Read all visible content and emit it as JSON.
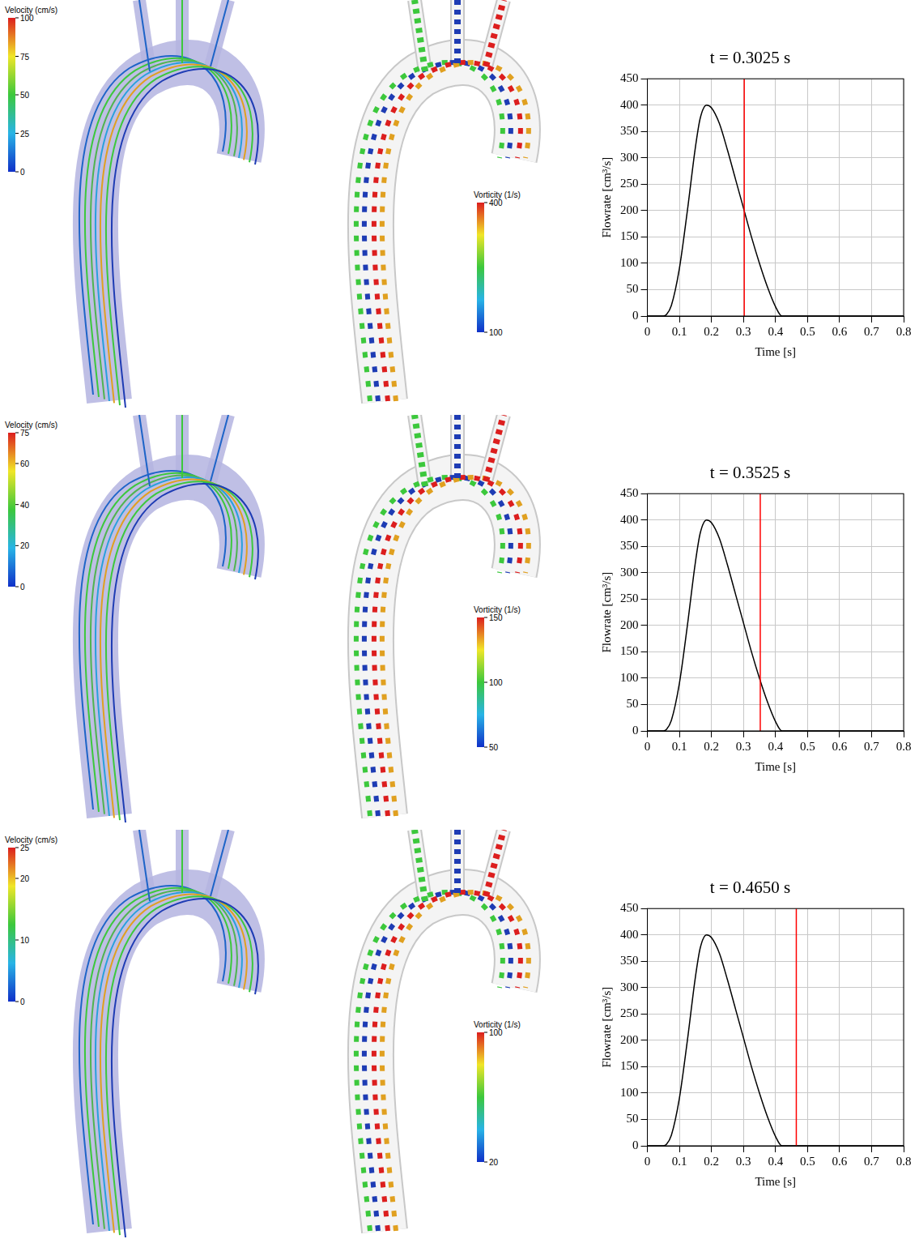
{
  "panels": [
    {
      "velocity_colorbar": {
        "title": "Velocity (cm/s)",
        "range": [
          0,
          100
        ],
        "ticks": [
          0,
          25,
          50,
          75,
          100
        ]
      },
      "vorticity_colorbar": {
        "title": "Vorticity (1/s)",
        "range": [
          100,
          400
        ],
        "ticks": [
          100,
          400
        ]
      }
    },
    {
      "velocity_colorbar": {
        "title": "Velocity (cm/s)",
        "range": [
          0,
          75
        ],
        "ticks": [
          0,
          20,
          40,
          60,
          75
        ]
      },
      "vorticity_colorbar": {
        "title": "Vorticity (1/s)",
        "range": [
          50,
          150
        ],
        "ticks": [
          50,
          100,
          150
        ]
      }
    },
    {
      "velocity_colorbar": {
        "title": "Velocity (cm/s)",
        "range": [
          0,
          25
        ],
        "ticks": [
          0,
          10,
          20,
          25
        ]
      },
      "vorticity_colorbar": {
        "title": "Vorticity (1/s)",
        "range": [
          20,
          100
        ],
        "ticks": [
          20,
          100
        ]
      }
    }
  ],
  "chart_data": [
    {
      "type": "line",
      "title": "t = 0.3025 s",
      "x_label": "Time [s]",
      "y_label": "Flowrate [cm³/s]",
      "x": [
        0,
        0.05,
        0.06,
        0.075,
        0.1,
        0.125,
        0.15,
        0.165,
        0.185,
        0.2,
        0.225,
        0.25,
        0.275,
        0.3,
        0.325,
        0.35,
        0.375,
        0.4,
        0.42,
        0.8
      ],
      "values": [
        0,
        0,
        3,
        20,
        90,
        200,
        320,
        375,
        400,
        395,
        365,
        315,
        260,
        205,
        150,
        100,
        55,
        18,
        0,
        0
      ],
      "color": "#000000",
      "vertical_line": {
        "x": 0.3025,
        "color": "#ff0000"
      },
      "xlim": [
        0,
        0.8
      ],
      "xticks": [
        0,
        0.1,
        0.2,
        0.3,
        0.4,
        0.5,
        0.6,
        0.7,
        0.8
      ],
      "ylim": [
        0,
        450
      ],
      "yticks": [
        0,
        50,
        100,
        150,
        200,
        250,
        300,
        350,
        400,
        450
      ],
      "grid": true
    },
    {
      "type": "line",
      "title": "t = 0.3525 s",
      "x_label": "Time [s]",
      "y_label": "Flowrate [cm³/s]",
      "x": [
        0,
        0.05,
        0.06,
        0.075,
        0.1,
        0.125,
        0.15,
        0.165,
        0.185,
        0.2,
        0.225,
        0.25,
        0.275,
        0.3,
        0.325,
        0.35,
        0.375,
        0.4,
        0.42,
        0.8
      ],
      "values": [
        0,
        0,
        3,
        20,
        90,
        200,
        320,
        375,
        400,
        395,
        365,
        315,
        260,
        205,
        150,
        100,
        55,
        18,
        0,
        0
      ],
      "color": "#000000",
      "vertical_line": {
        "x": 0.3525,
        "color": "#ff0000"
      },
      "xlim": [
        0,
        0.8
      ],
      "xticks": [
        0,
        0.1,
        0.2,
        0.3,
        0.4,
        0.5,
        0.6,
        0.7,
        0.8
      ],
      "ylim": [
        0,
        450
      ],
      "yticks": [
        0,
        50,
        100,
        150,
        200,
        250,
        300,
        350,
        400,
        450
      ],
      "grid": true
    },
    {
      "type": "line",
      "title": "t = 0.4650 s",
      "x_label": "Time [s]",
      "y_label": "Flowrate [cm³/s]",
      "x": [
        0,
        0.05,
        0.06,
        0.075,
        0.1,
        0.125,
        0.15,
        0.165,
        0.185,
        0.2,
        0.225,
        0.25,
        0.275,
        0.3,
        0.325,
        0.35,
        0.375,
        0.4,
        0.42,
        0.8
      ],
      "values": [
        0,
        0,
        3,
        20,
        90,
        200,
        320,
        375,
        400,
        395,
        365,
        315,
        260,
        205,
        150,
        100,
        55,
        18,
        0,
        0
      ],
      "color": "#000000",
      "vertical_line": {
        "x": 0.465,
        "color": "#ff0000"
      },
      "xlim": [
        0,
        0.8
      ],
      "xticks": [
        0,
        0.1,
        0.2,
        0.3,
        0.4,
        0.5,
        0.6,
        0.7,
        0.8
      ],
      "ylim": [
        0,
        450
      ],
      "yticks": [
        0,
        50,
        100,
        150,
        200,
        250,
        300,
        350,
        400,
        450
      ],
      "grid": true
    }
  ]
}
